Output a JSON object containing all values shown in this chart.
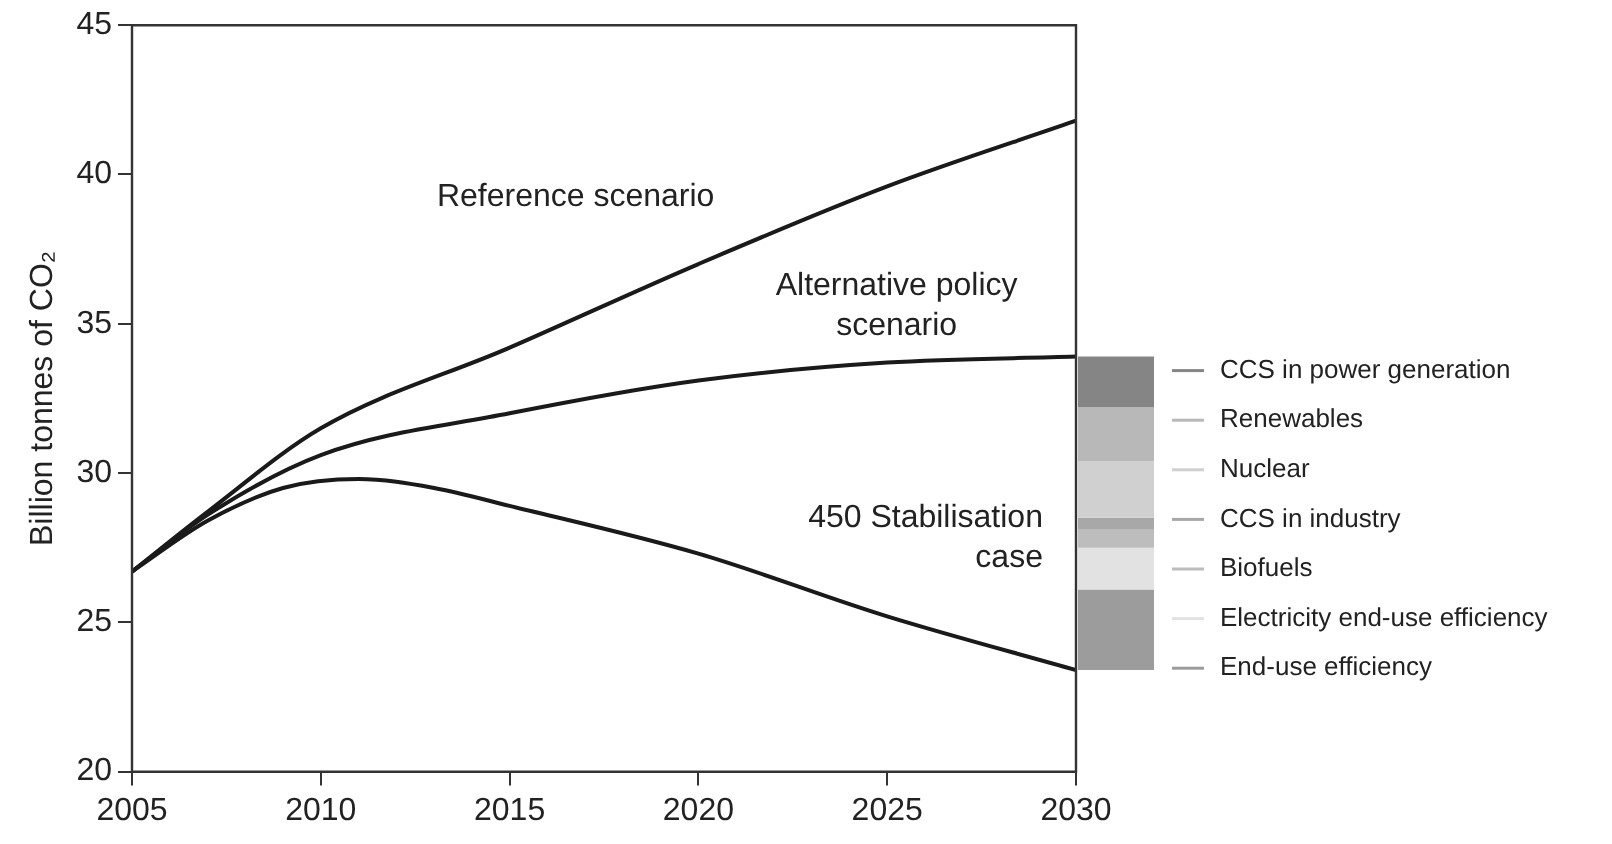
{
  "chart_data": {
    "type": "line",
    "ylabel": "Billion tonnes of CO₂",
    "xlim": [
      2005,
      2030
    ],
    "xticks": [
      2005,
      2010,
      2015,
      2020,
      2025,
      2030
    ],
    "ylim": [
      20,
      45
    ],
    "yticks": [
      20,
      25,
      30,
      35,
      40,
      45
    ],
    "grid": false,
    "legend": "right",
    "line_style": "solid",
    "marker": "none",
    "series": [
      {
        "name": "Reference scenario",
        "color": "#1a1a1a",
        "x": [
          2005,
          2007,
          2010,
          2015,
          2020,
          2025,
          2030
        ],
        "values": [
          26.7,
          28.7,
          31.5,
          34.2,
          37.0,
          39.6,
          41.8
        ]
      },
      {
        "name": "Alternative policy scenario",
        "color": "#1a1a1a",
        "x": [
          2005,
          2007,
          2010,
          2015,
          2020,
          2025,
          2030
        ],
        "values": [
          26.7,
          28.6,
          30.6,
          32.0,
          33.1,
          33.7,
          33.9
        ]
      },
      {
        "name": "450 Stabilisation case",
        "color": "#1a1a1a",
        "x": [
          2005,
          2007,
          2009,
          2011,
          2013,
          2015,
          2020,
          2025,
          2030
        ],
        "values": [
          26.7,
          28.4,
          29.5,
          29.8,
          29.5,
          28.9,
          27.3,
          25.2,
          23.4
        ]
      },
      {
        "type": "bar",
        "name": "End-use efficiency",
        "color": "#9c9c9c",
        "x": [
          2030
        ],
        "base": [
          23.4
        ],
        "values": [
          2.7
        ]
      },
      {
        "type": "bar",
        "name": "Electricity end-use efficiency",
        "color": "#e2e2e2",
        "x": [
          2030
        ],
        "base": [
          26.1
        ],
        "values": [
          1.4
        ]
      },
      {
        "type": "bar",
        "name": "Biofuels",
        "color": "#bdbdbd",
        "x": [
          2030
        ],
        "base": [
          27.5
        ],
        "values": [
          0.6
        ]
      },
      {
        "type": "bar",
        "name": "CCS in industry",
        "color": "#a8a8a8",
        "x": [
          2030
        ],
        "base": [
          28.1
        ],
        "values": [
          0.4
        ]
      },
      {
        "type": "bar",
        "name": "Nuclear",
        "color": "#d0d0d0",
        "x": [
          2030
        ],
        "base": [
          28.5
        ],
        "values": [
          1.9
        ]
      },
      {
        "type": "bar",
        "name": "Renewables",
        "color": "#b8b8b8",
        "x": [
          2030
        ],
        "base": [
          30.4
        ],
        "values": [
          1.8
        ]
      },
      {
        "type": "bar",
        "name": "CCS in power generation",
        "color": "#858585",
        "x": [
          2030
        ],
        "base": [
          32.2
        ],
        "values": [
          1.7
        ]
      }
    ]
  }
}
